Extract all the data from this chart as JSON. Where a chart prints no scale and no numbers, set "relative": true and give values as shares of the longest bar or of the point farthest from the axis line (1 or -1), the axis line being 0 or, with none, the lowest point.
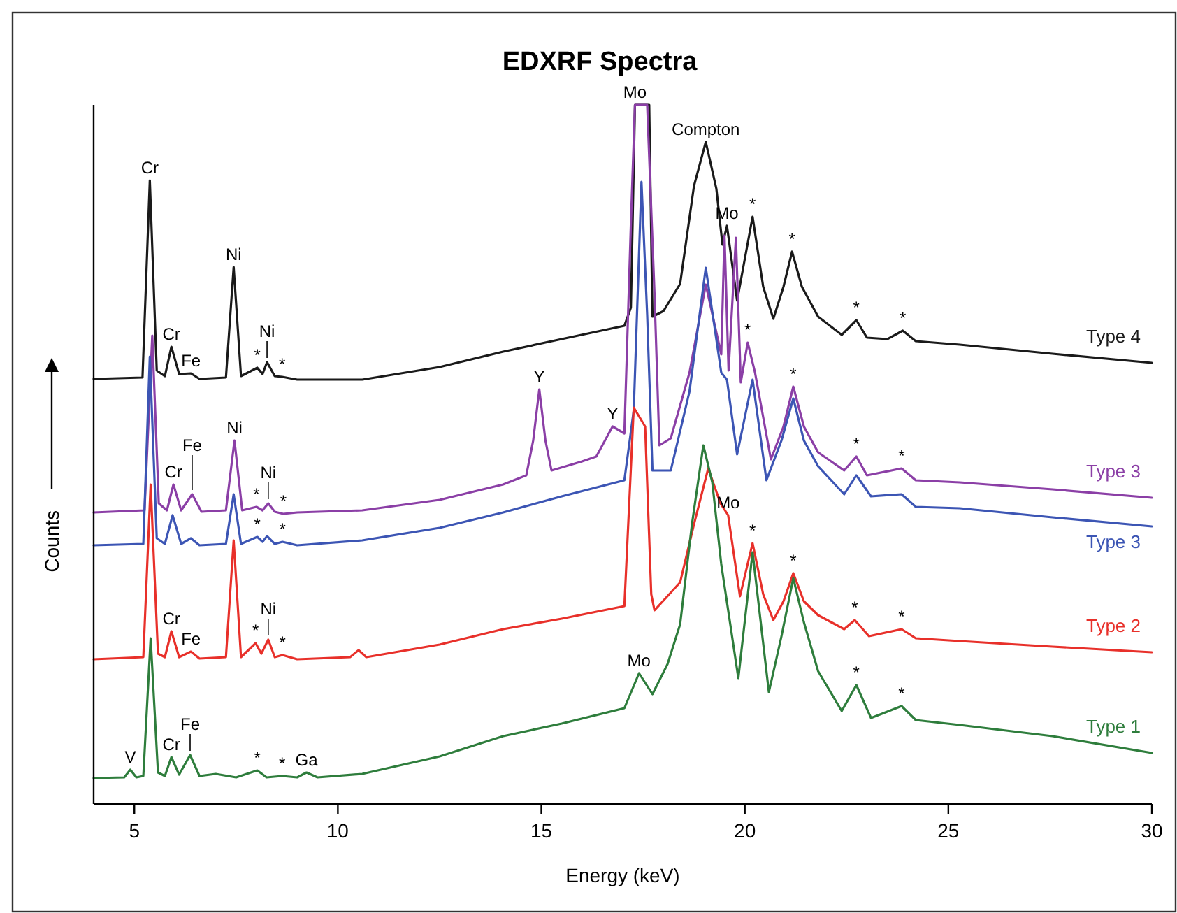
{
  "chart_data": {
    "type": "line",
    "title": "EDXRF Spectra",
    "xlabel": "Energy (keV)",
    "ylabel": "Counts",
    "relative": true,
    "xlim": [
      4,
      30
    ],
    "xticks": [
      5,
      10,
      15,
      20,
      25,
      30
    ],
    "series": [
      {
        "name": "Type 4",
        "color": "#1a1a1a",
        "x": [
          4.0,
          5.2,
          5.38,
          5.55,
          5.75,
          5.91,
          6.1,
          6.39,
          6.6,
          7.25,
          7.44,
          7.62,
          8.02,
          8.15,
          8.26,
          8.45,
          8.63,
          9.0,
          10.6,
          12.5,
          14.06,
          15.5,
          17.04,
          17.2,
          17.3,
          17.65,
          17.73,
          18.0,
          18.41,
          18.75,
          19.04,
          19.3,
          19.45,
          19.56,
          19.81,
          20.19,
          20.45,
          20.7,
          20.95,
          21.16,
          21.4,
          21.8,
          22.38,
          22.74,
          23.0,
          23.5,
          23.88,
          24.2,
          25.28,
          27.56,
          30
        ],
        "values": [
          0.608,
          0.61,
          0.892,
          0.62,
          0.612,
          0.654,
          0.615,
          0.616,
          0.608,
          0.61,
          0.768,
          0.612,
          0.624,
          0.615,
          0.632,
          0.612,
          0.611,
          0.607,
          0.607,
          0.625,
          0.647,
          0.665,
          0.684,
          0.71,
          1.0,
          1.0,
          0.697,
          0.705,
          0.744,
          0.884,
          0.947,
          0.88,
          0.8,
          0.827,
          0.72,
          0.84,
          0.74,
          0.694,
          0.74,
          0.79,
          0.74,
          0.697,
          0.671,
          0.692,
          0.667,
          0.665,
          0.677,
          0.662,
          0.657,
          0.644,
          0.631
        ]
      },
      {
        "name": "Type 3",
        "color": "#8b3fa6",
        "x": [
          4.0,
          5.25,
          5.44,
          5.6,
          5.8,
          5.96,
          6.15,
          6.42,
          6.65,
          7.25,
          7.46,
          7.65,
          8.0,
          8.15,
          8.29,
          8.45,
          8.66,
          9.0,
          10.6,
          12.5,
          14.06,
          14.63,
          14.8,
          14.95,
          15.1,
          15.25,
          16.0,
          16.35,
          16.75,
          17.04,
          17.2,
          17.3,
          17.6,
          17.78,
          17.9,
          18.18,
          18.64,
          19.04,
          19.42,
          19.5,
          19.6,
          19.78,
          19.9,
          20.07,
          20.25,
          20.64,
          20.95,
          21.19,
          21.45,
          21.8,
          22.44,
          22.74,
          23.0,
          23.85,
          24.2,
          25.28,
          27.56,
          30
        ],
        "values": [
          0.417,
          0.42,
          0.67,
          0.43,
          0.42,
          0.457,
          0.42,
          0.443,
          0.418,
          0.42,
          0.52,
          0.42,
          0.425,
          0.42,
          0.43,
          0.418,
          0.415,
          0.417,
          0.42,
          0.435,
          0.457,
          0.47,
          0.52,
          0.593,
          0.52,
          0.477,
          0.49,
          0.497,
          0.54,
          0.53,
          0.83,
          1.0,
          1.0,
          0.73,
          0.513,
          0.523,
          0.617,
          0.743,
          0.643,
          0.813,
          0.62,
          0.81,
          0.603,
          0.66,
          0.617,
          0.493,
          0.54,
          0.597,
          0.54,
          0.503,
          0.477,
          0.497,
          0.47,
          0.48,
          0.463,
          0.46,
          0.45,
          0.438
        ]
      },
      {
        "name": "Type 3",
        "color": "#3c55b4",
        "x": [
          4.0,
          5.22,
          5.38,
          5.55,
          5.75,
          5.94,
          6.15,
          6.39,
          6.6,
          7.25,
          7.44,
          7.62,
          8.02,
          8.15,
          8.26,
          8.45,
          8.64,
          9.0,
          10.6,
          12.5,
          14.06,
          15.5,
          17.04,
          17.27,
          17.46,
          17.6,
          17.73,
          18.18,
          18.64,
          19.04,
          19.42,
          19.56,
          19.81,
          20.19,
          20.53,
          20.9,
          21.19,
          21.45,
          21.8,
          22.44,
          22.74,
          23.1,
          23.85,
          24.2,
          25.28,
          27.56,
          30
        ],
        "values": [
          0.37,
          0.372,
          0.64,
          0.38,
          0.372,
          0.413,
          0.372,
          0.38,
          0.37,
          0.372,
          0.443,
          0.372,
          0.382,
          0.375,
          0.383,
          0.372,
          0.375,
          0.37,
          0.377,
          0.395,
          0.417,
          0.44,
          0.463,
          0.563,
          0.89,
          0.7,
          0.477,
          0.477,
          0.59,
          0.767,
          0.617,
          0.607,
          0.5,
          0.607,
          0.463,
          0.52,
          0.58,
          0.52,
          0.483,
          0.443,
          0.47,
          0.44,
          0.443,
          0.425,
          0.423,
          0.41,
          0.397
        ]
      },
      {
        "name": "Type 2",
        "color": "#e8302a",
        "x": [
          4.0,
          5.22,
          5.4,
          5.58,
          5.75,
          5.91,
          6.1,
          6.39,
          6.6,
          7.25,
          7.44,
          7.62,
          7.98,
          8.12,
          8.29,
          8.45,
          8.64,
          9.0,
          10.3,
          10.51,
          10.7,
          12.5,
          14.06,
          15.5,
          17.04,
          17.27,
          17.55,
          17.7,
          17.78,
          18.41,
          18.75,
          19.1,
          19.4,
          19.59,
          19.88,
          20.19,
          20.45,
          20.7,
          20.95,
          21.19,
          21.45,
          21.8,
          22.44,
          22.7,
          23.05,
          23.85,
          24.2,
          25.28,
          27.56,
          30
        ],
        "values": [
          0.207,
          0.21,
          0.457,
          0.215,
          0.21,
          0.247,
          0.21,
          0.218,
          0.208,
          0.21,
          0.377,
          0.21,
          0.23,
          0.215,
          0.235,
          0.21,
          0.213,
          0.207,
          0.21,
          0.22,
          0.21,
          0.228,
          0.25,
          0.265,
          0.283,
          0.567,
          0.54,
          0.3,
          0.277,
          0.317,
          0.4,
          0.48,
          0.43,
          0.413,
          0.297,
          0.373,
          0.3,
          0.263,
          0.29,
          0.33,
          0.29,
          0.27,
          0.25,
          0.263,
          0.24,
          0.25,
          0.237,
          0.233,
          0.225,
          0.217
        ]
      },
      {
        "name": "Type 1",
        "color": "#2e7d3c",
        "x": [
          4.0,
          4.75,
          4.9,
          5.05,
          5.22,
          5.4,
          5.58,
          5.75,
          5.91,
          6.1,
          6.37,
          6.6,
          7.0,
          7.5,
          8.02,
          8.25,
          8.63,
          9.0,
          9.23,
          9.5,
          10.6,
          12.5,
          14.06,
          15.5,
          17.04,
          17.4,
          17.73,
          18.1,
          18.41,
          18.7,
          18.98,
          19.2,
          19.42,
          19.84,
          20.19,
          20.59,
          20.9,
          21.19,
          21.45,
          21.8,
          22.38,
          22.74,
          23.1,
          23.85,
          24.2,
          25.28,
          27.56,
          30
        ],
        "values": [
          0.037,
          0.038,
          0.049,
          0.038,
          0.04,
          0.237,
          0.045,
          0.04,
          0.067,
          0.042,
          0.07,
          0.04,
          0.043,
          0.038,
          0.048,
          0.038,
          0.04,
          0.038,
          0.045,
          0.038,
          0.043,
          0.068,
          0.097,
          0.115,
          0.137,
          0.187,
          0.157,
          0.2,
          0.257,
          0.4,
          0.513,
          0.46,
          0.343,
          0.18,
          0.36,
          0.16,
          0.24,
          0.323,
          0.26,
          0.19,
          0.133,
          0.17,
          0.123,
          0.14,
          0.12,
          0.113,
          0.097,
          0.073
        ]
      }
    ],
    "annotations": [
      {
        "text": "Cr",
        "x": 5.38,
        "y": 0.892
      },
      {
        "text": "Cr",
        "x": 5.91,
        "y": 0.654
      },
      {
        "text": "Fe",
        "x": 6.39,
        "y": 0.616
      },
      {
        "text": "Ni",
        "x": 7.44,
        "y": 0.768
      },
      {
        "text": "*",
        "x": 8.02,
        "y": 0.624
      },
      {
        "text": "Ni",
        "x": 8.26,
        "y": 0.632
      },
      {
        "text": "*",
        "x": 8.63,
        "y": 0.611
      },
      {
        "text": "Mo",
        "x": 17.3,
        "y": 1.0
      },
      {
        "text": "Compton",
        "x": 19.04,
        "y": 0.947
      },
      {
        "text": "Mo",
        "x": 19.56,
        "y": 0.827
      },
      {
        "text": "*",
        "x": 20.19,
        "y": 0.84
      },
      {
        "text": "*",
        "x": 21.16,
        "y": 0.79
      },
      {
        "text": "*",
        "x": 22.74,
        "y": 0.692
      },
      {
        "text": "*",
        "x": 23.88,
        "y": 0.677
      },
      {
        "text": "Cr",
        "x": 5.96,
        "y": 0.457
      },
      {
        "text": "Fe",
        "x": 6.42,
        "y": 0.443
      },
      {
        "text": "Ni",
        "x": 7.46,
        "y": 0.52
      },
      {
        "text": "*",
        "x": 8.0,
        "y": 0.425
      },
      {
        "text": "Ni",
        "x": 8.29,
        "y": 0.43
      },
      {
        "text": "*",
        "x": 8.66,
        "y": 0.415
      },
      {
        "text": "Y",
        "x": 14.95,
        "y": 0.593
      },
      {
        "text": "Y",
        "x": 16.75,
        "y": 0.54
      },
      {
        "text": "*",
        "x": 20.07,
        "y": 0.66
      },
      {
        "text": "*",
        "x": 21.19,
        "y": 0.597
      },
      {
        "text": "*",
        "x": 22.74,
        "y": 0.497
      },
      {
        "text": "*",
        "x": 23.85,
        "y": 0.48
      },
      {
        "text": "*",
        "x": 8.02,
        "y": 0.382
      },
      {
        "text": "*",
        "x": 8.64,
        "y": 0.375
      },
      {
        "text": "Cr",
        "x": 5.91,
        "y": 0.247
      },
      {
        "text": "Fe",
        "x": 6.39,
        "y": 0.218
      },
      {
        "text": "*",
        "x": 7.98,
        "y": 0.23
      },
      {
        "text": "Ni",
        "x": 8.29,
        "y": 0.235
      },
      {
        "text": "*",
        "x": 8.64,
        "y": 0.213
      },
      {
        "text": "Mo",
        "x": 19.59,
        "y": 0.413
      },
      {
        "text": "*",
        "x": 20.19,
        "y": 0.373
      },
      {
        "text": "*",
        "x": 21.19,
        "y": 0.33
      },
      {
        "text": "*",
        "x": 22.7,
        "y": 0.263
      },
      {
        "text": "*",
        "x": 23.85,
        "y": 0.25
      },
      {
        "text": "V",
        "x": 4.9,
        "y": 0.049
      },
      {
        "text": "Cr",
        "x": 5.91,
        "y": 0.067
      },
      {
        "text": "Fe",
        "x": 6.37,
        "y": 0.07
      },
      {
        "text": "*",
        "x": 8.02,
        "y": 0.048
      },
      {
        "text": "*",
        "x": 8.63,
        "y": 0.04
      },
      {
        "text": "Ga",
        "x": 9.23,
        "y": 0.045
      },
      {
        "text": "Mo",
        "x": 17.4,
        "y": 0.187
      },
      {
        "text": "*",
        "x": 22.74,
        "y": 0.17
      },
      {
        "text": "*",
        "x": 23.85,
        "y": 0.14
      }
    ]
  }
}
